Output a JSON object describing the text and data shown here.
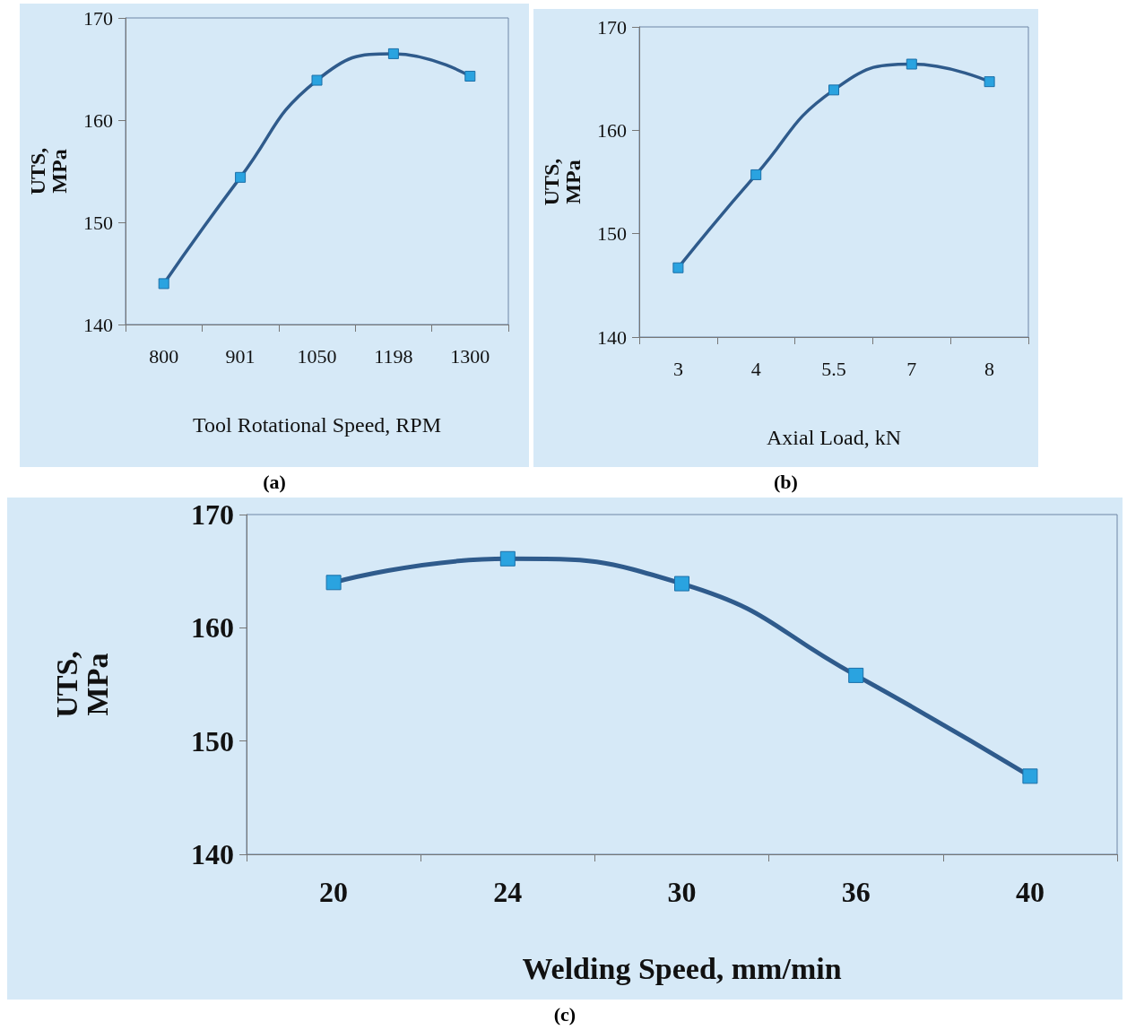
{
  "chart_data": [
    {
      "type": "line",
      "xlabel": "Tool Rotational Speed, RPM",
      "ylabel": "UTS, MPa",
      "categories": [
        "800",
        "901",
        "1050",
        "1198",
        "1300"
      ],
      "series": [
        {
          "color": "#2f5b8c",
          "values": [
            144,
            154.4,
            163.9,
            166.5,
            164.3
          ]
        }
      ],
      "ylim": [
        140,
        170
      ],
      "yticks": [
        140,
        150,
        160,
        170
      ],
      "marker": "square",
      "line_style": "solid",
      "grid": false,
      "annotations": [
        "(a)"
      ]
    },
    {
      "type": "line",
      "xlabel": "Axial Load, kN",
      "ylabel": "UTS, MPa",
      "categories": [
        "3",
        "4",
        "5.5",
        "7",
        "8"
      ],
      "series": [
        {
          "color": "#2f5b8c",
          "values": [
            146.7,
            155.7,
            163.9,
            166.4,
            164.7
          ]
        }
      ],
      "ylim": [
        140,
        170
      ],
      "yticks": [
        140,
        150,
        160,
        170
      ],
      "marker": "square",
      "line_style": "solid",
      "grid": false,
      "annotations": [
        "(b)"
      ]
    },
    {
      "type": "line",
      "xlabel": "Welding Speed, mm/min",
      "ylabel": "UTS, MPa",
      "categories": [
        "20",
        "24",
        "30",
        "36",
        "40"
      ],
      "series": [
        {
          "color": "#2f5b8c",
          "values": [
            164,
            166.1,
            163.9,
            155.8,
            146.9
          ]
        }
      ],
      "ylim": [
        140,
        170
      ],
      "yticks": [
        140,
        150,
        160,
        170
      ],
      "marker": "square",
      "line_style": "solid",
      "grid": false,
      "annotations": [
        "(c)"
      ]
    }
  ]
}
